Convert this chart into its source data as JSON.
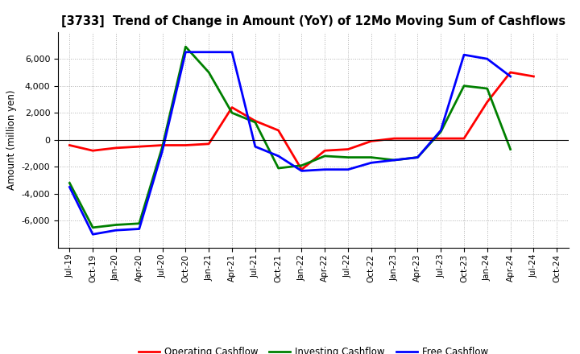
{
  "title": "[3733]  Trend of Change in Amount (YoY) of 12Mo Moving Sum of Cashflows",
  "ylabel": "Amount (million yen)",
  "x_labels": [
    "Jul-19",
    "Oct-19",
    "Jan-20",
    "Apr-20",
    "Jul-20",
    "Oct-20",
    "Jan-21",
    "Apr-21",
    "Jul-21",
    "Oct-21",
    "Jan-22",
    "Apr-22",
    "Jul-22",
    "Oct-22",
    "Jan-23",
    "Apr-23",
    "Jul-23",
    "Oct-23",
    "Jan-24",
    "Apr-24",
    "Jul-24",
    "Oct-24"
  ],
  "operating": [
    -400,
    -800,
    -600,
    -500,
    -400,
    -400,
    -300,
    2400,
    1400,
    700,
    -2200,
    -800,
    -700,
    -100,
    100,
    100,
    100,
    100,
    2800,
    5000,
    4700,
    null
  ],
  "investing": [
    -3200,
    -6500,
    -6300,
    -6200,
    -500,
    6900,
    5000,
    2000,
    1300,
    -2100,
    -1900,
    -1200,
    -1300,
    -1300,
    -1500,
    -1300,
    600,
    4000,
    3800,
    -700,
    null,
    null
  ],
  "free": [
    -3500,
    -7000,
    -6700,
    -6600,
    -800,
    6500,
    6500,
    6500,
    -500,
    -1200,
    -2300,
    -2200,
    -2200,
    -1700,
    -1500,
    -1300,
    700,
    6300,
    6000,
    4700,
    null,
    null
  ],
  "ylim": [
    -8000,
    8000
  ],
  "yticks": [
    -6000,
    -4000,
    -2000,
    0,
    2000,
    4000,
    6000
  ],
  "operating_color": "#ff0000",
  "investing_color": "#008000",
  "free_color": "#0000ff",
  "line_width": 2.0,
  "bg_color": "#ffffff",
  "grid_color": "#b0b0b0"
}
